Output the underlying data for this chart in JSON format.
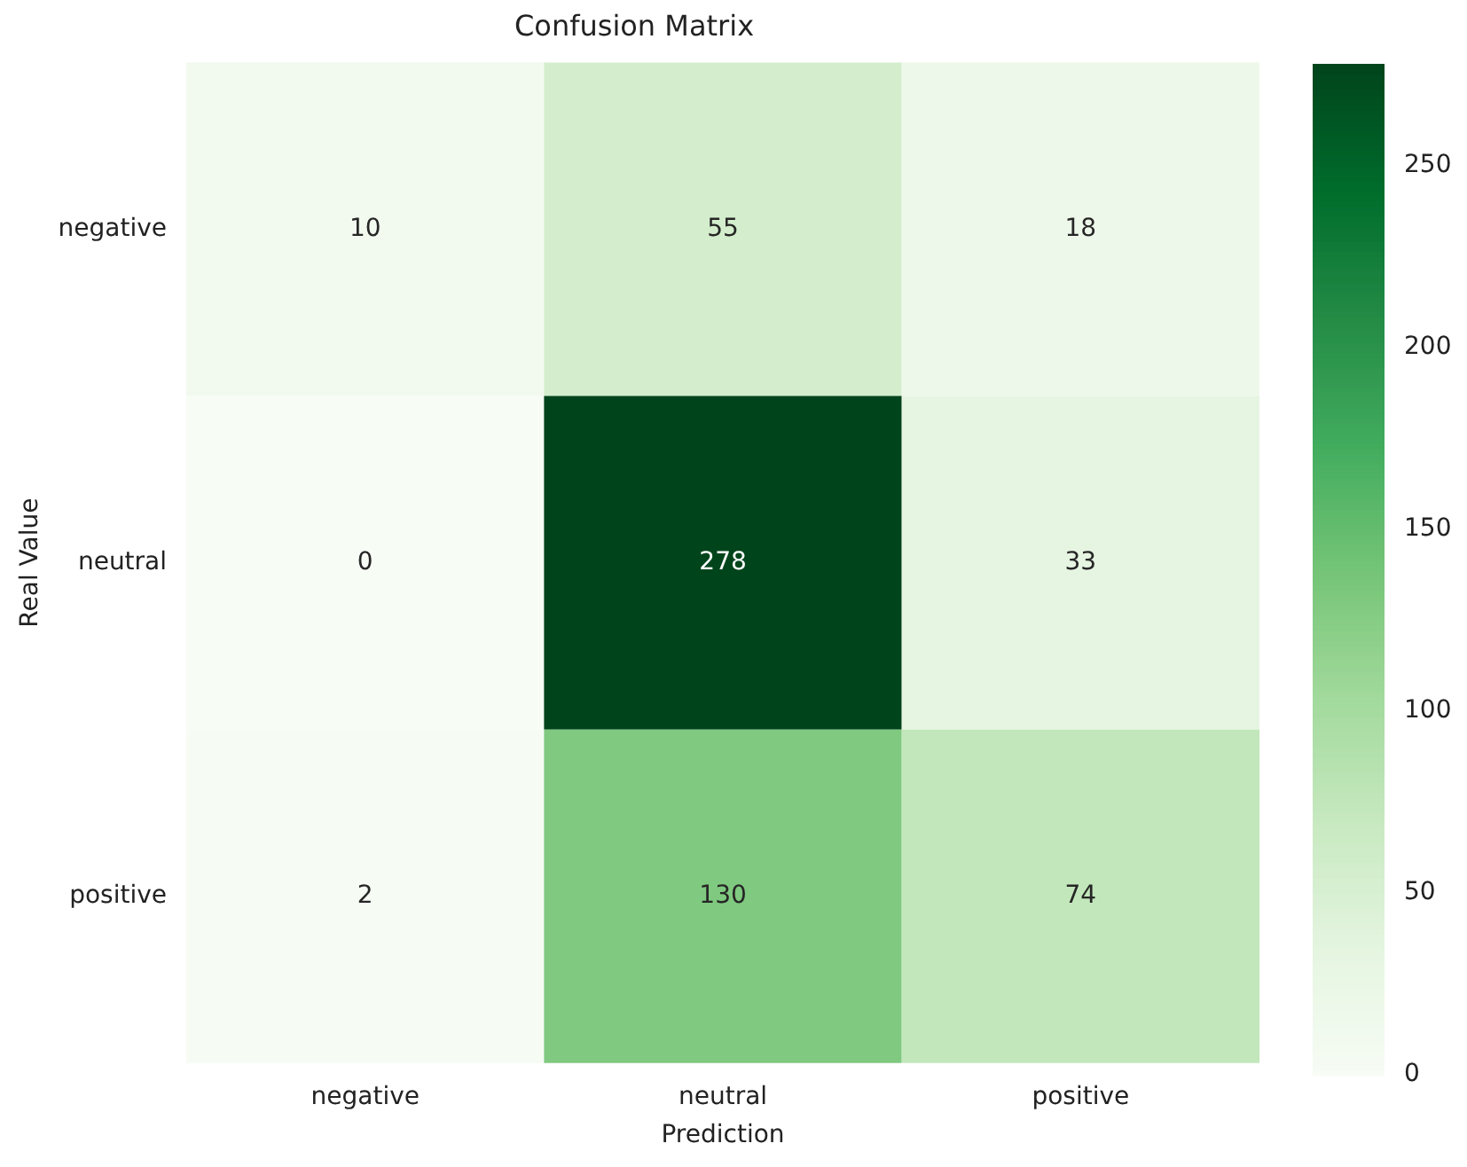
{
  "chart_data": {
    "type": "heatmap",
    "title": "Confusion Matrix",
    "xlabel": "Prediction",
    "ylabel": "Real Value",
    "categories": [
      "negative",
      "neutral",
      "positive"
    ],
    "y_categories": [
      "negative",
      "neutral",
      "positive"
    ],
    "cells": [
      [
        10,
        55,
        18
      ],
      [
        0,
        278,
        33
      ],
      [
        2,
        130,
        74
      ]
    ],
    "clim": [
      0,
      278
    ],
    "cticks": [
      0,
      50,
      100,
      150,
      200,
      250
    ],
    "data_labels": true
  }
}
